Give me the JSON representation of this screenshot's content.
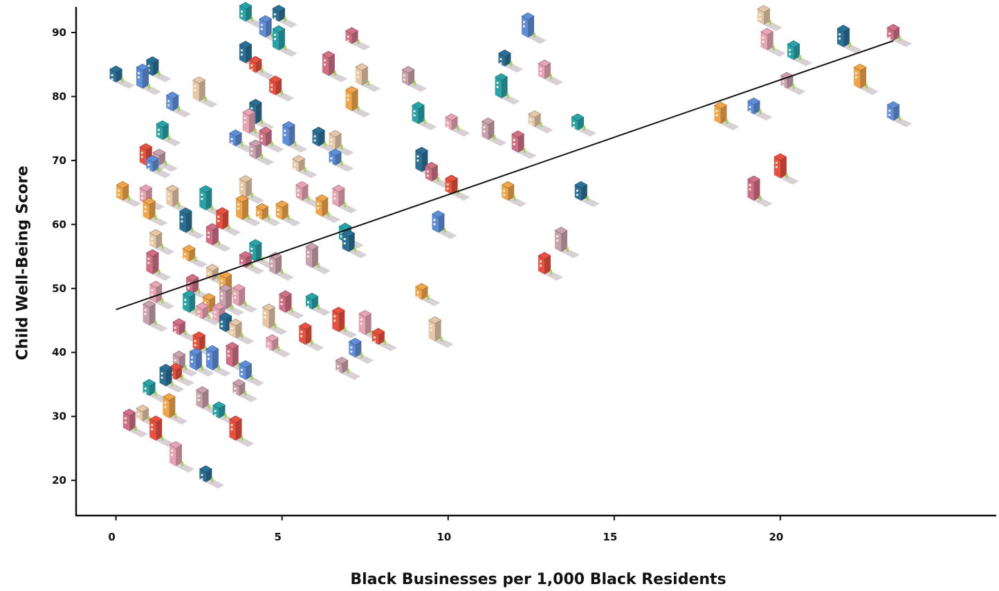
{
  "chart_data": {
    "type": "scatter",
    "title": "",
    "xlabel": "Black Businesses per 1,000 Black Residents",
    "ylabel": "Child Well-Being Score",
    "xlim": [
      -1.2,
      26.5
    ],
    "ylim": [
      14.5,
      94
    ],
    "xticks": [
      0,
      5,
      10,
      15,
      20
    ],
    "yticks": [
      20,
      30,
      40,
      50,
      60,
      70,
      80,
      90
    ],
    "grid": false,
    "marker": "isometric-building-icon",
    "trendline": {
      "x": [
        0,
        23.4
      ],
      "y": [
        46.7,
        88.7
      ]
    },
    "building_colors": [
      "#e8503f",
      "#f0a54a",
      "#e7a4b4",
      "#2a6f95",
      "#e6c7a8",
      "#29a2a8",
      "#5f8ed8",
      "#c9a2ad",
      "#d06f86"
    ],
    "points": [
      {
        "x": 0,
        "y": 82.2
      },
      {
        "x": 0.2,
        "y": 63.7
      },
      {
        "x": 0.4,
        "y": 27.7
      },
      {
        "x": 0.8,
        "y": 81.2
      },
      {
        "x": 0.8,
        "y": 29.2
      },
      {
        "x": 0.9,
        "y": 63.2
      },
      {
        "x": 0.9,
        "y": 69.2
      },
      {
        "x": 1.0,
        "y": 44.2
      },
      {
        "x": 1.0,
        "y": 33.2
      },
      {
        "x": 1.1,
        "y": 83.2
      },
      {
        "x": 1.0,
        "y": 60.7
      },
      {
        "x": 1.1,
        "y": 52.2
      },
      {
        "x": 1.1,
        "y": 68.2
      },
      {
        "x": 1.2,
        "y": 56.2
      },
      {
        "x": 1.2,
        "y": 47.7
      },
      {
        "x": 1.2,
        "y": 26.2
      },
      {
        "x": 1.3,
        "y": 69.2
      },
      {
        "x": 1.4,
        "y": 73.2
      },
      {
        "x": 1.5,
        "y": 34.7
      },
      {
        "x": 1.6,
        "y": 29.7
      },
      {
        "x": 1.9,
        "y": 42.7
      },
      {
        "x": 1.7,
        "y": 77.7
      },
      {
        "x": 1.7,
        "y": 62.7
      },
      {
        "x": 1.8,
        "y": 22.2
      },
      {
        "x": 1.8,
        "y": 35.7
      },
      {
        "x": 1.9,
        "y": 37.2
      },
      {
        "x": 2.2,
        "y": 46.2
      },
      {
        "x": 2.1,
        "y": 58.7
      },
      {
        "x": 2.2,
        "y": 54.2
      },
      {
        "x": 2.3,
        "y": 49.2
      },
      {
        "x": 2.4,
        "y": 37.2
      },
      {
        "x": 2.5,
        "y": 79.2
      },
      {
        "x": 2.6,
        "y": 45.2
      },
      {
        "x": 2.5,
        "y": 40.2
      },
      {
        "x": 2.6,
        "y": 31.2
      },
      {
        "x": 2.7,
        "y": 62.2
      },
      {
        "x": 2.7,
        "y": 19.7
      },
      {
        "x": 2.8,
        "y": 46.2
      },
      {
        "x": 2.9,
        "y": 56.7
      },
      {
        "x": 2.9,
        "y": 37.2
      },
      {
        "x": 2.9,
        "y": 51.2
      },
      {
        "x": 3.1,
        "y": 44.7
      },
      {
        "x": 3.2,
        "y": 59.2
      },
      {
        "x": 3.3,
        "y": 46.7
      },
      {
        "x": 3.1,
        "y": 29.7
      },
      {
        "x": 3.3,
        "y": 43.2
      },
      {
        "x": 3.3,
        "y": 49.2
      },
      {
        "x": 3.5,
        "y": 37.7
      },
      {
        "x": 3.6,
        "y": 72.2
      },
      {
        "x": 3.6,
        "y": 42.2
      },
      {
        "x": 3.7,
        "y": 47.2
      },
      {
        "x": 3.6,
        "y": 26.2
      },
      {
        "x": 3.7,
        "y": 33.2
      },
      {
        "x": 3.9,
        "y": 91.7
      },
      {
        "x": 3.9,
        "y": 85.2
      },
      {
        "x": 3.8,
        "y": 60.7
      },
      {
        "x": 3.9,
        "y": 53.2
      },
      {
        "x": 3.9,
        "y": 35.7
      },
      {
        "x": 3.9,
        "y": 64.2
      },
      {
        "x": 4.0,
        "y": 74.2
      },
      {
        "x": 4.2,
        "y": 83.7
      },
      {
        "x": 4.2,
        "y": 70.2
      },
      {
        "x": 4.2,
        "y": 54.2
      },
      {
        "x": 4.2,
        "y": 75.7
      },
      {
        "x": 4.4,
        "y": 60.7
      },
      {
        "x": 4.5,
        "y": 72.2
      },
      {
        "x": 4.5,
        "y": 89.2
      },
      {
        "x": 4.6,
        "y": 43.7
      },
      {
        "x": 4.7,
        "y": 40.2
      },
      {
        "x": 4.8,
        "y": 80.2
      },
      {
        "x": 4.8,
        "y": 52.2
      },
      {
        "x": 4.9,
        "y": 87.2
      },
      {
        "x": 4.9,
        "y": 91.7
      },
      {
        "x": 5.0,
        "y": 60.7
      },
      {
        "x": 5.1,
        "y": 46.2
      },
      {
        "x": 5.2,
        "y": 72.2
      },
      {
        "x": 5.5,
        "y": 68.2
      },
      {
        "x": 5.6,
        "y": 63.7
      },
      {
        "x": 5.7,
        "y": 41.2
      },
      {
        "x": 5.9,
        "y": 53.2
      },
      {
        "x": 5.9,
        "y": 46.7
      },
      {
        "x": 6.1,
        "y": 72.2
      },
      {
        "x": 6.2,
        "y": 61.2
      },
      {
        "x": 6.4,
        "y": 83.2
      },
      {
        "x": 6.6,
        "y": 69.2
      },
      {
        "x": 6.6,
        "y": 71.7
      },
      {
        "x": 6.7,
        "y": 62.7
      },
      {
        "x": 6.7,
        "y": 43.2
      },
      {
        "x": 6.8,
        "y": 36.7
      },
      {
        "x": 6.9,
        "y": 57.2
      },
      {
        "x": 7.0,
        "y": 55.7
      },
      {
        "x": 7.1,
        "y": 77.7
      },
      {
        "x": 7.1,
        "y": 88.2
      },
      {
        "x": 7.2,
        "y": 39.2
      },
      {
        "x": 7.4,
        "y": 81.7
      },
      {
        "x": 7.5,
        "y": 42.7
      },
      {
        "x": 7.9,
        "y": 41.2
      },
      {
        "x": 8.8,
        "y": 81.7
      },
      {
        "x": 9.1,
        "y": 75.7
      },
      {
        "x": 9.2,
        "y": 68.2
      },
      {
        "x": 9.2,
        "y": 48.2
      },
      {
        "x": 9.5,
        "y": 66.7
      },
      {
        "x": 9.7,
        "y": 58.7
      },
      {
        "x": 9.6,
        "y": 41.7
      },
      {
        "x": 10.1,
        "y": 74.7
      },
      {
        "x": 10.1,
        "y": 64.7
      },
      {
        "x": 11.2,
        "y": 73.2
      },
      {
        "x": 11.6,
        "y": 79.7
      },
      {
        "x": 11.7,
        "y": 84.7
      },
      {
        "x": 11.8,
        "y": 63.7
      },
      {
        "x": 12.1,
        "y": 71.2
      },
      {
        "x": 12.4,
        "y": 89.2
      },
      {
        "x": 12.6,
        "y": 75.2
      },
      {
        "x": 12.9,
        "y": 82.7
      },
      {
        "x": 12.9,
        "y": 52.2
      },
      {
        "x": 13.4,
        "y": 55.7
      },
      {
        "x": 13.9,
        "y": 74.7
      },
      {
        "x": 14.0,
        "y": 63.7
      },
      {
        "x": 18.2,
        "y": 75.7
      },
      {
        "x": 19.2,
        "y": 63.7
      },
      {
        "x": 19.2,
        "y": 77.2
      },
      {
        "x": 19.5,
        "y": 91.2
      },
      {
        "x": 19.6,
        "y": 87.2
      },
      {
        "x": 20.0,
        "y": 67.2
      },
      {
        "x": 20.2,
        "y": 81.2
      },
      {
        "x": 20.4,
        "y": 85.7
      },
      {
        "x": 21.9,
        "y": 87.7
      },
      {
        "x": 22.4,
        "y": 81.2
      },
      {
        "x": 23.4,
        "y": 88.7
      },
      {
        "x": 23.4,
        "y": 76.2
      }
    ]
  }
}
